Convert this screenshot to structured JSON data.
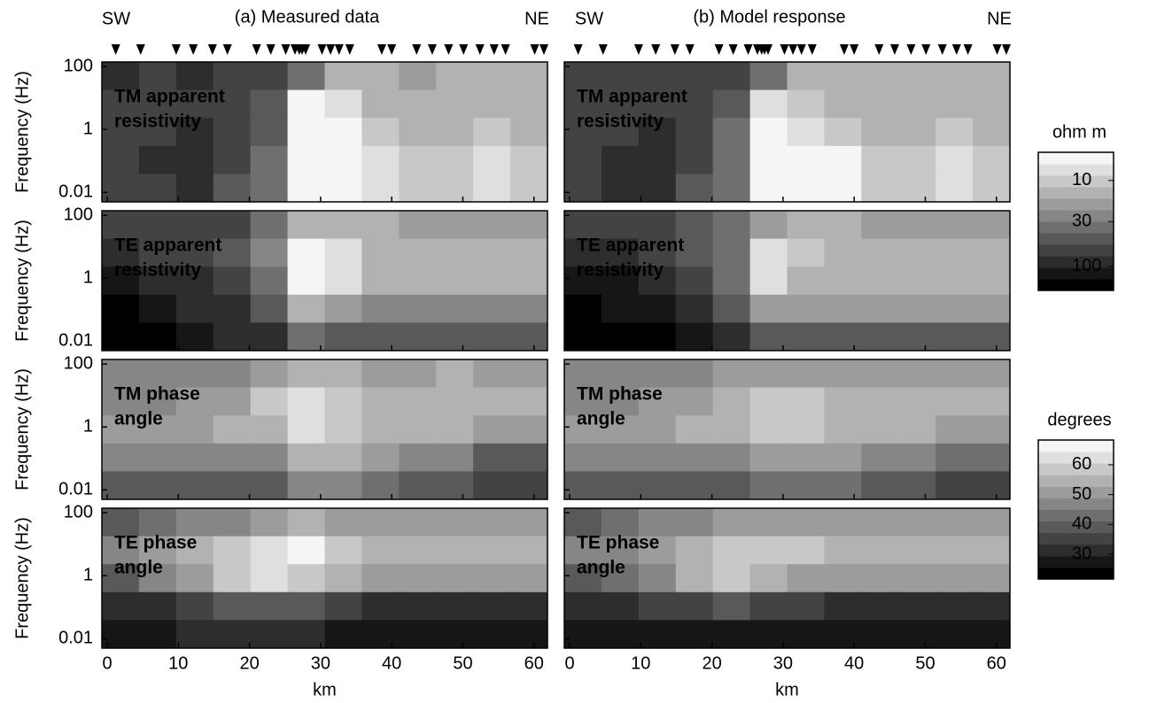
{
  "chart_data": {
    "type": "heatmap",
    "titles": [
      "(a) Measured data",
      "(b) Model response"
    ],
    "left_end": "SW",
    "right_end": "NE",
    "x_label": "km",
    "y_label": "Frequency (Hz)",
    "xlim": [
      -0.75,
      61.9
    ],
    "xticks": [
      0,
      10,
      20,
      30,
      40,
      50,
      60
    ],
    "ylim": [
      0.005,
      140
    ],
    "yticks": [
      100,
      1,
      0.01
    ],
    "log_y": true,
    "stations": [
      1.2,
      4.7,
      9.7,
      12.1,
      14.8,
      16.9,
      21.0,
      23.0,
      25.1,
      26.4,
      27.0,
      27.4,
      27.9,
      30.2,
      31.4,
      32.6,
      34.1,
      38.6,
      40.0,
      43.5,
      45.7,
      48.0,
      50.1,
      52.4,
      54.4,
      56.0,
      60.1,
      61.4
    ],
    "colorbars": [
      {
        "title": "ohm m",
        "lim": [
          190,
          4.7
        ],
        "log": true,
        "ticks": [
          10,
          30,
          100
        ],
        "levels": 12
      },
      {
        "title": "degrees",
        "lim": [
          21.7,
          68.3
        ],
        "log": false,
        "ticks": [
          30,
          40,
          50,
          60
        ],
        "levels": 12
      }
    ],
    "panels": [
      {
        "label": [
          "TM apparent",
          "resistivity"
        ],
        "label_color": "#ffffff",
        "values": [
          [
            80,
            70,
            80,
            70,
            60,
            30,
            12,
            15,
            20,
            15,
            12,
            15
          ],
          [
            70,
            60,
            70,
            60,
            50,
            6,
            8,
            12,
            15,
            12,
            12,
            15
          ],
          [
            60,
            70,
            80,
            60,
            50,
            4,
            6,
            10,
            14,
            12,
            10,
            12
          ],
          [
            60,
            80,
            90,
            60,
            40,
            3,
            5,
            8,
            10,
            10,
            8,
            10
          ],
          [
            60,
            70,
            90,
            50,
            40,
            3,
            4,
            8,
            10,
            10,
            8,
            9
          ]
        ]
      },
      {
        "label": [
          "TE apparent",
          "resistivity"
        ],
        "label_color": "#ffffff",
        "values": [
          [
            70,
            70,
            60,
            60,
            40,
            15,
            12,
            15,
            20,
            20,
            20,
            20
          ],
          [
            80,
            70,
            60,
            50,
            25,
            6,
            8,
            12,
            15,
            15,
            15,
            15
          ],
          [
            120,
            100,
            80,
            60,
            30,
            5,
            8,
            12,
            14,
            14,
            14,
            14
          ],
          [
            150,
            130,
            100,
            80,
            50,
            15,
            20,
            25,
            25,
            25,
            25,
            25
          ],
          [
            150,
            150,
            120,
            100,
            80,
            40,
            50,
            50,
            50,
            50,
            50,
            50
          ]
        ]
      },
      {
        "label": [
          "TM phase",
          "angle"
        ],
        "label_color": "#000000",
        "values": [
          [
            45,
            45,
            45,
            45,
            50,
            55,
            55,
            50,
            50,
            55,
            50,
            50
          ],
          [
            48,
            47,
            50,
            52,
            58,
            62,
            60,
            55,
            55,
            55,
            55,
            55
          ],
          [
            50,
            50,
            52,
            55,
            55,
            62,
            60,
            55,
            55,
            55,
            50,
            50
          ],
          [
            45,
            45,
            45,
            45,
            45,
            55,
            55,
            50,
            48,
            45,
            40,
            40
          ],
          [
            38,
            38,
            40,
            40,
            40,
            45,
            45,
            42,
            40,
            38,
            35,
            35
          ]
        ]
      },
      {
        "label": [
          "TE phase",
          "angle"
        ],
        "label_color": "#ffffff",
        "values": [
          [
            40,
            42,
            45,
            47,
            50,
            55,
            52,
            50,
            50,
            50,
            50,
            50
          ],
          [
            48,
            50,
            55,
            58,
            62,
            65,
            60,
            55,
            55,
            55,
            55,
            55
          ],
          [
            40,
            45,
            52,
            60,
            62,
            60,
            55,
            50,
            50,
            50,
            50,
            50
          ],
          [
            30,
            32,
            35,
            38,
            40,
            40,
            35,
            30,
            30,
            30,
            30,
            30
          ],
          [
            28,
            28,
            30,
            30,
            30,
            30,
            28,
            28,
            28,
            28,
            28,
            28
          ]
        ]
      },
      {
        "label": [
          "TM apparent",
          "resistivity"
        ],
        "label_color": "#ffffff",
        "values": [
          [
            70,
            70,
            70,
            70,
            60,
            30,
            15,
            15,
            15,
            15,
            14,
            15
          ],
          [
            60,
            60,
            70,
            60,
            50,
            8,
            10,
            12,
            14,
            12,
            12,
            14
          ],
          [
            60,
            70,
            80,
            60,
            40,
            5,
            8,
            10,
            12,
            12,
            10,
            12
          ],
          [
            60,
            80,
            80,
            60,
            35,
            4,
            6,
            6,
            10,
            10,
            8,
            10
          ],
          [
            60,
            80,
            90,
            50,
            30,
            3,
            5,
            5,
            9,
            9,
            8,
            9
          ]
        ]
      },
      {
        "label": [
          "TE apparent",
          "resistivity"
        ],
        "label_color": "#ffffff",
        "values": [
          [
            70,
            60,
            60,
            50,
            40,
            20,
            15,
            15,
            20,
            20,
            20,
            20
          ],
          [
            90,
            80,
            60,
            50,
            30,
            8,
            10,
            12,
            14,
            15,
            15,
            15
          ],
          [
            130,
            110,
            80,
            60,
            35,
            8,
            12,
            12,
            12,
            12,
            12,
            12
          ],
          [
            150,
            130,
            110,
            80,
            50,
            20,
            20,
            20,
            20,
            20,
            20,
            20
          ],
          [
            170,
            160,
            140,
            120,
            90,
            50,
            50,
            50,
            50,
            50,
            50,
            50
          ]
        ]
      },
      {
        "label": [
          "TM phase",
          "angle"
        ],
        "label_color": "#000000",
        "values": [
          [
            45,
            45,
            47,
            47,
            50,
            52,
            52,
            50,
            50,
            52,
            50,
            50
          ],
          [
            48,
            48,
            50,
            52,
            55,
            58,
            58,
            55,
            55,
            55,
            55,
            55
          ],
          [
            50,
            50,
            52,
            55,
            55,
            58,
            58,
            55,
            55,
            55,
            50,
            50
          ],
          [
            45,
            45,
            45,
            45,
            47,
            52,
            52,
            50,
            48,
            45,
            42,
            42
          ],
          [
            38,
            38,
            40,
            40,
            40,
            42,
            42,
            42,
            40,
            38,
            36,
            36
          ]
        ]
      },
      {
        "label": [
          "TE phase",
          "angle"
        ],
        "label_color": "#ffffff",
        "values": [
          [
            40,
            42,
            45,
            47,
            50,
            52,
            52,
            50,
            50,
            50,
            50,
            50
          ],
          [
            45,
            48,
            52,
            56,
            58,
            60,
            58,
            55,
            55,
            55,
            55,
            55
          ],
          [
            38,
            42,
            48,
            55,
            60,
            55,
            52,
            50,
            50,
            50,
            50,
            50
          ],
          [
            30,
            32,
            34,
            36,
            38,
            36,
            34,
            32,
            32,
            32,
            32,
            32
          ],
          [
            28,
            28,
            28,
            28,
            28,
            28,
            28,
            28,
            28,
            28,
            28,
            28
          ]
        ]
      }
    ]
  }
}
